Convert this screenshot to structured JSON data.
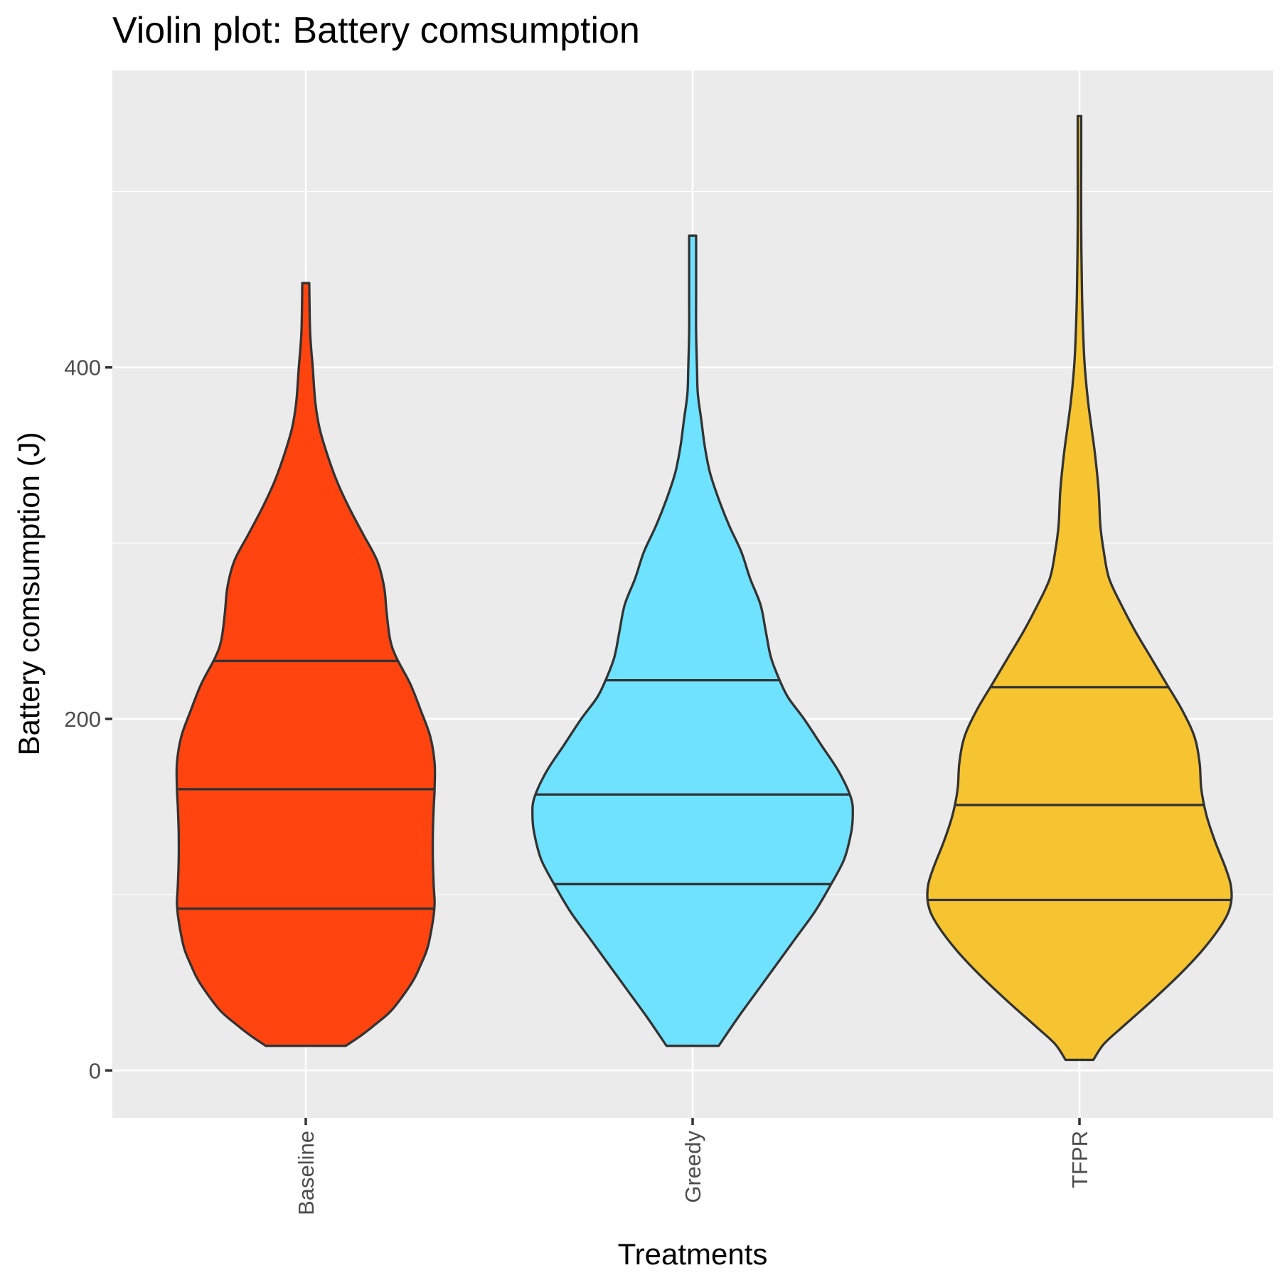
{
  "chart_data": {
    "type": "violin",
    "title": "Violin plot: Battery comsumption",
    "xlabel": "Treatments",
    "ylabel": "Battery comsumption (J)",
    "ylim": [
      -27,
      569
    ],
    "y_ticks": [
      0,
      200,
      400
    ],
    "y_tick_labels": [
      "0",
      "200",
      "400"
    ],
    "grid": true,
    "categories": [
      "Baseline",
      "Greedy",
      "TFPR"
    ],
    "series": [
      {
        "category": "Baseline",
        "color": "#FF4410",
        "min": 14,
        "max": 448,
        "quantiles": [
          92,
          160,
          233
        ],
        "profile": [
          [
            14,
            0.23
          ],
          [
            20,
            0.32
          ],
          [
            27,
            0.41
          ],
          [
            35,
            0.5
          ],
          [
            50,
            0.61
          ],
          [
            60,
            0.66
          ],
          [
            70,
            0.7
          ],
          [
            85,
            0.73
          ],
          [
            95,
            0.74
          ],
          [
            105,
            0.735
          ],
          [
            120,
            0.73
          ],
          [
            135,
            0.73
          ],
          [
            150,
            0.735
          ],
          [
            160,
            0.74
          ],
          [
            175,
            0.74
          ],
          [
            190,
            0.715
          ],
          [
            205,
            0.66
          ],
          [
            220,
            0.6
          ],
          [
            235,
            0.52
          ],
          [
            245,
            0.485
          ],
          [
            260,
            0.465
          ],
          [
            275,
            0.45
          ],
          [
            290,
            0.41
          ],
          [
            305,
            0.33
          ],
          [
            320,
            0.25
          ],
          [
            335,
            0.18
          ],
          [
            350,
            0.125
          ],
          [
            365,
            0.08
          ],
          [
            380,
            0.055
          ],
          [
            400,
            0.04
          ],
          [
            420,
            0.025
          ],
          [
            448,
            0.02
          ]
        ]
      },
      {
        "category": "Greedy",
        "color": "#6EE2FF",
        "min": 14,
        "max": 475,
        "quantiles": [
          106,
          157,
          222
        ],
        "profile": [
          [
            14,
            0.15
          ],
          [
            30,
            0.26
          ],
          [
            45,
            0.37
          ],
          [
            60,
            0.48
          ],
          [
            75,
            0.59
          ],
          [
            90,
            0.7
          ],
          [
            105,
            0.79
          ],
          [
            120,
            0.87
          ],
          [
            135,
            0.91
          ],
          [
            145,
            0.92
          ],
          [
            155,
            0.91
          ],
          [
            170,
            0.84
          ],
          [
            185,
            0.74
          ],
          [
            200,
            0.64
          ],
          [
            212,
            0.55
          ],
          [
            222,
            0.5
          ],
          [
            235,
            0.45
          ],
          [
            250,
            0.42
          ],
          [
            265,
            0.39
          ],
          [
            280,
            0.33
          ],
          [
            295,
            0.28
          ],
          [
            310,
            0.21
          ],
          [
            325,
            0.15
          ],
          [
            340,
            0.1
          ],
          [
            355,
            0.07
          ],
          [
            370,
            0.05
          ],
          [
            385,
            0.03
          ],
          [
            400,
            0.025
          ],
          [
            420,
            0.02
          ],
          [
            440,
            0.02
          ],
          [
            460,
            0.02
          ],
          [
            475,
            0.02
          ]
        ]
      },
      {
        "category": "TFPR",
        "color": "#F6C431",
        "min": 6,
        "max": 543,
        "quantiles": [
          97,
          151,
          218
        ],
        "profile": [
          [
            6,
            0.08
          ],
          [
            15,
            0.14
          ],
          [
            25,
            0.25
          ],
          [
            40,
            0.42
          ],
          [
            55,
            0.58
          ],
          [
            70,
            0.72
          ],
          [
            85,
            0.83
          ],
          [
            95,
            0.87
          ],
          [
            105,
            0.87
          ],
          [
            115,
            0.84
          ],
          [
            130,
            0.78
          ],
          [
            145,
            0.73
          ],
          [
            160,
            0.7
          ],
          [
            175,
            0.69
          ],
          [
            190,
            0.66
          ],
          [
            205,
            0.59
          ],
          [
            220,
            0.5
          ],
          [
            235,
            0.41
          ],
          [
            250,
            0.32
          ],
          [
            265,
            0.24
          ],
          [
            280,
            0.17
          ],
          [
            295,
            0.14
          ],
          [
            310,
            0.12
          ],
          [
            330,
            0.11
          ],
          [
            350,
            0.09
          ],
          [
            365,
            0.07
          ],
          [
            380,
            0.05
          ],
          [
            395,
            0.035
          ],
          [
            410,
            0.025
          ],
          [
            440,
            0.015
          ],
          [
            480,
            0.01
          ],
          [
            520,
            0.01
          ],
          [
            543,
            0.01
          ]
        ]
      }
    ]
  }
}
